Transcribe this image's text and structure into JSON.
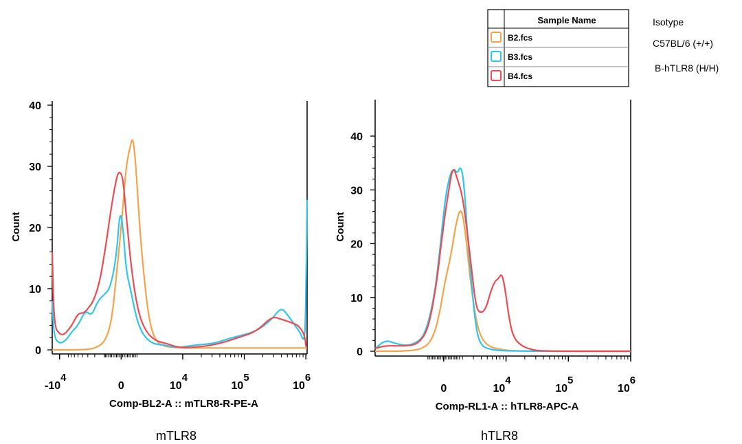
{
  "legend": {
    "header": "Sample Name",
    "items": [
      {
        "label": "B2.fcs",
        "color": "#F5A34A",
        "description": "Isotype"
      },
      {
        "label": "B3.fcs",
        "color": "#2EC6EE",
        "description": "C57BL/6 (+/+)"
      },
      {
        "label": "B4.fcs",
        "color": "#EE4B50",
        "description": "B-hTLR8  (H/H)"
      }
    ]
  },
  "chart_data": [
    {
      "type": "line",
      "xlabel": "Comp-BL2-A :: mTLR8-R-PE-A",
      "ylabel": "Count",
      "caption": "mTLR8",
      "ylim": [
        0,
        40
      ],
      "yticks": [
        "0",
        "10",
        "20",
        "30",
        "40"
      ],
      "xticks": [
        {
          "base": "-10",
          "exp": "4",
          "pos": -1.0
        },
        {
          "base": "0",
          "exp": "",
          "pos": 0.0
        },
        {
          "base": "10",
          "exp": "4",
          "pos": 1.0
        },
        {
          "base": "10",
          "exp": "5",
          "pos": 2.0
        },
        {
          "base": "10",
          "exp": "6",
          "pos": 3.0
        }
      ],
      "xlim": [
        -1.12,
        3.02
      ],
      "series": [
        {
          "name": "B2.fcs",
          "color": "#F5A34A",
          "points": [
            [
              -1.12,
              0
            ],
            [
              -0.6,
              0
            ],
            [
              -0.4,
              0.3
            ],
            [
              -0.25,
              1.5
            ],
            [
              -0.15,
              5
            ],
            [
              -0.08,
              12
            ],
            [
              0,
              20
            ],
            [
              0.08,
              30
            ],
            [
              0.14,
              33
            ],
            [
              0.19,
              35
            ],
            [
              0.24,
              30
            ],
            [
              0.3,
              20
            ],
            [
              0.37,
              12
            ],
            [
              0.45,
              5
            ],
            [
              0.55,
              1.5
            ],
            [
              0.7,
              0.5
            ],
            [
              1.0,
              0.3
            ],
            [
              2.0,
              0.3
            ],
            [
              3.02,
              0.3
            ]
          ]
        },
        {
          "name": "B3.fcs",
          "color": "#2EC6EE",
          "points": [
            [
              -1.12,
              8
            ],
            [
              -1.09,
              2
            ],
            [
              -1.0,
              1
            ],
            [
              -0.9,
              1.5
            ],
            [
              -0.8,
              3
            ],
            [
              -0.7,
              4
            ],
            [
              -0.58,
              6.5
            ],
            [
              -0.48,
              5.5
            ],
            [
              -0.38,
              8
            ],
            [
              -0.28,
              9
            ],
            [
              -0.18,
              10
            ],
            [
              -0.08,
              15
            ],
            [
              -0.02,
              23
            ],
            [
              0.03,
              20
            ],
            [
              0.08,
              13
            ],
            [
              0.15,
              10
            ],
            [
              0.25,
              5
            ],
            [
              0.35,
              2.5
            ],
            [
              0.5,
              1
            ],
            [
              0.7,
              0.8
            ],
            [
              0.9,
              0.3
            ],
            [
              1.2,
              0.8
            ],
            [
              1.5,
              1
            ],
            [
              1.8,
              2
            ],
            [
              2.2,
              3
            ],
            [
              2.45,
              5
            ],
            [
              2.6,
              7
            ],
            [
              2.72,
              5.5
            ],
            [
              2.82,
              4
            ],
            [
              2.9,
              3
            ],
            [
              2.98,
              1
            ],
            [
              3.0,
              8
            ],
            [
              3.02,
              24.5
            ]
          ]
        },
        {
          "name": "B4.fcs",
          "color": "#EE4B50",
          "points": [
            [
              -1.12,
              16
            ],
            [
              -1.09,
              4
            ],
            [
              -1.0,
              2.5
            ],
            [
              -0.92,
              2.5
            ],
            [
              -0.8,
              4
            ],
            [
              -0.7,
              6
            ],
            [
              -0.6,
              6
            ],
            [
              -0.52,
              7
            ],
            [
              -0.45,
              8
            ],
            [
              -0.35,
              11
            ],
            [
              -0.25,
              17
            ],
            [
              -0.15,
              24
            ],
            [
              -0.06,
              29
            ],
            [
              0,
              29
            ],
            [
              0.04,
              27
            ],
            [
              0.1,
              20
            ],
            [
              0.18,
              12
            ],
            [
              0.28,
              6
            ],
            [
              0.4,
              3
            ],
            [
              0.55,
              1.5
            ],
            [
              0.75,
              1
            ],
            [
              0.95,
              0.3
            ],
            [
              1.3,
              0.5
            ],
            [
              1.6,
              1
            ],
            [
              1.9,
              2
            ],
            [
              2.2,
              3
            ],
            [
              2.45,
              5.5
            ],
            [
              2.6,
              5
            ],
            [
              2.75,
              4.5
            ],
            [
              2.88,
              4
            ],
            [
              2.98,
              2.5
            ],
            [
              3.0,
              0.5
            ],
            [
              3.02,
              0.5
            ]
          ]
        }
      ]
    },
    {
      "type": "line",
      "xlabel": "Comp-RL1-A :: hTLR8-APC-A",
      "ylabel": "Count",
      "caption": "hTLR8",
      "ylim": [
        0,
        45
      ],
      "yticks": [
        "0",
        "10",
        "20",
        "30",
        "40"
      ],
      "xticks": [
        {
          "base": "0",
          "exp": "",
          "pos": 0.0
        },
        {
          "base": "10",
          "exp": "4",
          "pos": 1.0
        },
        {
          "base": "10",
          "exp": "5",
          "pos": 2.0
        },
        {
          "base": "10",
          "exp": "6",
          "pos": 3.0
        }
      ],
      "xlim": [
        -1.1,
        3.0
      ],
      "series": [
        {
          "name": "B2.fcs",
          "color": "#F5A34A",
          "points": [
            [
              -1.1,
              0
            ],
            [
              -0.6,
              0
            ],
            [
              -0.3,
              0.5
            ],
            [
              -0.15,
              3
            ],
            [
              -0.05,
              8
            ],
            [
              0.02,
              13
            ],
            [
              0.12,
              18
            ],
            [
              0.2,
              24
            ],
            [
              0.28,
              27
            ],
            [
              0.35,
              22
            ],
            [
              0.42,
              14
            ],
            [
              0.5,
              7
            ],
            [
              0.58,
              3
            ],
            [
              0.7,
              1
            ],
            [
              0.9,
              0.3
            ],
            [
              1.2,
              0
            ],
            [
              3.0,
              0
            ]
          ]
        },
        {
          "name": "B3.fcs",
          "color": "#2EC6EE",
          "points": [
            [
              -1.1,
              0.5
            ],
            [
              -1.0,
              1.5
            ],
            [
              -0.9,
              2
            ],
            [
              -0.8,
              1.5
            ],
            [
              -0.6,
              1
            ],
            [
              -0.45,
              1.5
            ],
            [
              -0.3,
              3
            ],
            [
              -0.15,
              10
            ],
            [
              -0.05,
              20
            ],
            [
              0.02,
              28
            ],
            [
              0.1,
              33
            ],
            [
              0.17,
              34
            ],
            [
              0.22,
              33
            ],
            [
              0.27,
              34.5
            ],
            [
              0.32,
              32
            ],
            [
              0.38,
              22
            ],
            [
              0.45,
              12
            ],
            [
              0.52,
              4
            ],
            [
              0.6,
              1
            ],
            [
              0.75,
              0.3
            ],
            [
              1.0,
              0
            ],
            [
              3.0,
              0
            ]
          ]
        },
        {
          "name": "B4.fcs",
          "color": "#EE4B50",
          "points": [
            [
              -1.1,
              0.5
            ],
            [
              -0.95,
              1
            ],
            [
              -0.8,
              1
            ],
            [
              -0.55,
              1
            ],
            [
              -0.4,
              1.5
            ],
            [
              -0.25,
              4
            ],
            [
              -0.12,
              12
            ],
            [
              -0.02,
              22
            ],
            [
              0.08,
              30
            ],
            [
              0.15,
              34.5
            ],
            [
              0.22,
              32
            ],
            [
              0.3,
              29
            ],
            [
              0.38,
              22
            ],
            [
              0.45,
              15
            ],
            [
              0.52,
              8
            ],
            [
              0.6,
              7
            ],
            [
              0.68,
              8
            ],
            [
              0.75,
              11
            ],
            [
              0.82,
              13
            ],
            [
              0.88,
              13.5
            ],
            [
              0.93,
              14.5
            ],
            [
              0.98,
              12
            ],
            [
              1.05,
              6
            ],
            [
              1.12,
              2.5
            ],
            [
              1.25,
              1
            ],
            [
              1.4,
              0.3
            ],
            [
              1.6,
              0
            ],
            [
              3.0,
              0
            ]
          ]
        }
      ]
    }
  ]
}
